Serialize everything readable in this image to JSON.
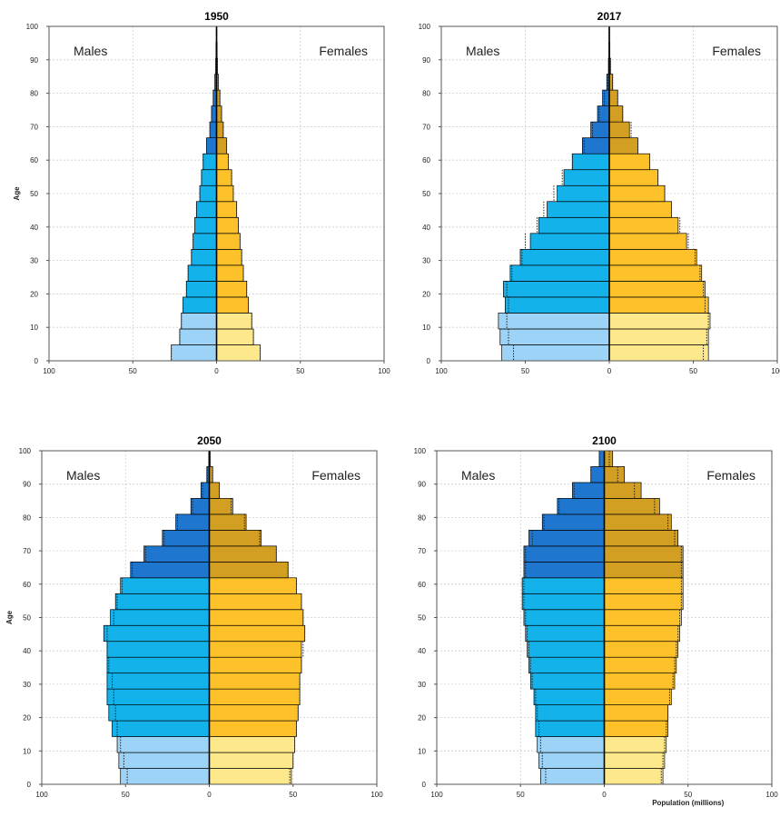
{
  "colors": {
    "male_young": "#9dd3f7",
    "male_adult": "#14b2ea",
    "male_old": "#1f76cf",
    "female_young": "#fde98c",
    "female_adult": "#fdc229",
    "female_old": "#d39f22",
    "outline": "#000000",
    "grid": "#cccccc"
  },
  "chart_data": [
    {
      "type": "bar",
      "title": "1950",
      "xlabel": "",
      "ylabel": "Age",
      "xlim": [
        -100,
        100
      ],
      "ylim": [
        0,
        100
      ],
      "x_ticks": [
        "100",
        "50",
        "0",
        "50",
        "100"
      ],
      "y_ticks": [
        "0",
        "10",
        "20",
        "30",
        "40",
        "50",
        "60",
        "70",
        "80",
        "90",
        "100"
      ],
      "sex_labels": {
        "left": "Males",
        "right": "Females"
      },
      "age_groups": [
        "0-4",
        "5-9",
        "10-14",
        "15-19",
        "20-24",
        "25-29",
        "30-34",
        "35-39",
        "40-44",
        "45-49",
        "50-54",
        "55-59",
        "60-64",
        "65-69",
        "70-74",
        "75-79",
        "80-84",
        "85-89",
        "90-94",
        "95-99",
        "100+"
      ],
      "series": [
        {
          "name": "Males",
          "values": [
            27,
            22,
            21,
            20,
            18,
            17,
            15,
            14,
            13,
            12,
            10,
            9,
            8,
            6,
            4,
            3,
            2,
            1,
            0.5,
            0.3,
            0.1
          ]
        },
        {
          "name": "Females",
          "values": [
            26,
            22,
            21,
            19,
            18,
            16,
            15,
            14,
            13,
            12,
            10,
            9,
            7,
            6,
            4,
            3,
            2,
            1,
            0.5,
            0.3,
            0.1
          ]
        }
      ],
      "comparison_outline": {
        "males": [
          27,
          22,
          21,
          20,
          18,
          17,
          15,
          14,
          13,
          12,
          10,
          9,
          8,
          6,
          4,
          3,
          2,
          1,
          0.5,
          0.3,
          0.1
        ],
        "females": [
          26,
          22,
          21,
          19,
          18,
          16,
          15,
          14,
          13,
          12,
          10,
          9,
          7,
          6,
          4,
          3,
          2,
          1,
          0.5,
          0.3,
          0.1
        ]
      }
    },
    {
      "type": "bar",
      "title": "2017",
      "xlabel": "",
      "ylabel": "",
      "xlim": [
        -100,
        100
      ],
      "ylim": [
        0,
        100
      ],
      "x_ticks": [
        "100",
        "50",
        "0",
        "50",
        "100"
      ],
      "y_ticks": [
        "0",
        "10",
        "20",
        "30",
        "40",
        "50",
        "60",
        "70",
        "80",
        "90",
        "100"
      ],
      "sex_labels": {
        "left": "Males",
        "right": "Females"
      },
      "age_groups": [
        "0-4",
        "5-9",
        "10-14",
        "15-19",
        "20-24",
        "25-29",
        "30-34",
        "35-39",
        "40-44",
        "45-49",
        "50-54",
        "55-59",
        "60-64",
        "65-69",
        "70-74",
        "75-79",
        "80-84",
        "85-89",
        "90-94",
        "95-99",
        "100+"
      ],
      "series": [
        {
          "name": "Males",
          "values": [
            64,
            65,
            66,
            62,
            63,
            59,
            53,
            47,
            42,
            37,
            31,
            27,
            22,
            16,
            11,
            7,
            4,
            1.5,
            0.5,
            0.2,
            0.1
          ]
        },
        {
          "name": "Females",
          "values": [
            59,
            59,
            60,
            59,
            57,
            55,
            52,
            46,
            41,
            37,
            33,
            29,
            24,
            17,
            12,
            8,
            5,
            2,
            0.7,
            0.3,
            0.1
          ]
        }
      ],
      "comparison_outline": {
        "males": [
          57,
          60,
          61,
          60,
          61,
          58,
          52,
          50,
          43,
          39,
          33,
          28,
          22,
          15,
          10,
          6,
          3,
          1,
          0.4,
          0.2,
          0.1
        ],
        "females": [
          56,
          58,
          59,
          57,
          56,
          54,
          51,
          47,
          42,
          37,
          33,
          29,
          24,
          17,
          13,
          8,
          5,
          2,
          0.7,
          0.3,
          0.1
        ]
      }
    },
    {
      "type": "bar",
      "title": "2050",
      "xlabel": "",
      "ylabel": "Age",
      "xlim": [
        -100,
        100
      ],
      "ylim": [
        0,
        100
      ],
      "x_ticks": [
        "100",
        "50",
        "0",
        "50",
        "100"
      ],
      "y_ticks": [
        "0",
        "10",
        "20",
        "30",
        "40",
        "50",
        "60",
        "70",
        "80",
        "90",
        "100"
      ],
      "sex_labels": {
        "left": "Males",
        "right": "Females"
      },
      "age_groups": [
        "0-4",
        "5-9",
        "10-14",
        "15-19",
        "20-24",
        "25-29",
        "30-34",
        "35-39",
        "40-44",
        "45-49",
        "50-54",
        "55-59",
        "60-64",
        "65-69",
        "70-74",
        "75-79",
        "80-84",
        "85-89",
        "90-94",
        "95-99",
        "100+"
      ],
      "series": [
        {
          "name": "Males",
          "values": [
            53,
            54,
            55,
            58,
            60,
            61,
            61,
            61,
            61,
            63,
            59,
            56,
            53,
            47,
            39,
            28,
            20,
            11,
            5,
            1.5,
            0.3
          ]
        },
        {
          "name": "Females",
          "values": [
            49,
            50,
            51,
            52,
            53,
            54,
            54,
            55,
            55,
            57,
            56,
            55,
            52,
            47,
            40,
            31,
            22,
            14,
            6,
            2,
            0.5
          ]
        }
      ],
      "comparison_outline": {
        "males": [
          49,
          51,
          53,
          55,
          56,
          57,
          58,
          60,
          61,
          61,
          57,
          55,
          52,
          46,
          38,
          27,
          19,
          10,
          4,
          1.2,
          0.3
        ],
        "females": [
          48,
          50,
          51,
          52,
          53,
          54,
          54,
          55,
          56,
          57,
          56,
          55,
          52,
          47,
          40,
          30,
          21,
          13,
          6,
          2,
          0.5
        ]
      }
    },
    {
      "type": "bar",
      "title": "2100",
      "xlabel": "Population (millions)",
      "ylabel": "",
      "xlim": [
        -100,
        100
      ],
      "ylim": [
        0,
        100
      ],
      "x_ticks": [
        "100",
        "50",
        "0",
        "50",
        "100"
      ],
      "y_ticks": [
        "0",
        "10",
        "20",
        "30",
        "40",
        "50",
        "60",
        "70",
        "80",
        "90",
        "100"
      ],
      "sex_labels": {
        "left": "Males",
        "right": "Females"
      },
      "age_groups": [
        "0-4",
        "5-9",
        "10-14",
        "15-19",
        "20-24",
        "25-29",
        "30-34",
        "35-39",
        "40-44",
        "45-49",
        "50-54",
        "55-59",
        "60-64",
        "65-69",
        "70-74",
        "75-79",
        "80-84",
        "85-89",
        "90-94",
        "95-99",
        "100+"
      ],
      "series": [
        {
          "name": "Males",
          "values": [
            38,
            39,
            40,
            41,
            41,
            42,
            44,
            45,
            46,
            47,
            48,
            49,
            49,
            48,
            48,
            45,
            37,
            28,
            19,
            8,
            3
          ]
        },
        {
          "name": "Females",
          "values": [
            35,
            36,
            37,
            38,
            38,
            40,
            42,
            43,
            44,
            45,
            46,
            47,
            47,
            47,
            47,
            44,
            40,
            33,
            22,
            12,
            5
          ]
        }
      ],
      "comparison_outline": {
        "males": [
          35,
          37,
          38,
          39,
          40,
          41,
          43,
          44,
          45,
          46,
          47,
          48,
          48,
          47,
          47,
          43,
          36,
          27,
          18,
          8,
          3
        ],
        "females": [
          34,
          35,
          36,
          37,
          38,
          39,
          41,
          42,
          43,
          44,
          45,
          46,
          46,
          46,
          46,
          42,
          38,
          30,
          18,
          8,
          3
        ]
      }
    }
  ]
}
